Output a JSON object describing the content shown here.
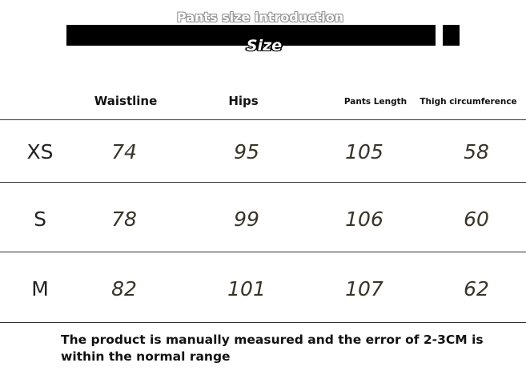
{
  "header": {
    "title": "Pants size introduction",
    "subtitle": "Size"
  },
  "columns": [
    "Waistline",
    "Hips",
    "Pants Length",
    "Thigh circumference"
  ],
  "rows": [
    {
      "size": "XS",
      "values": [
        "74",
        "95",
        "105",
        "58"
      ]
    },
    {
      "size": "S",
      "values": [
        "78",
        "99",
        "106",
        "60"
      ]
    },
    {
      "size": "M",
      "values": [
        "82",
        "101",
        "107",
        "62"
      ]
    }
  ],
  "note": "The product is manually measured and the error of 2-3CM is within the normal range"
}
